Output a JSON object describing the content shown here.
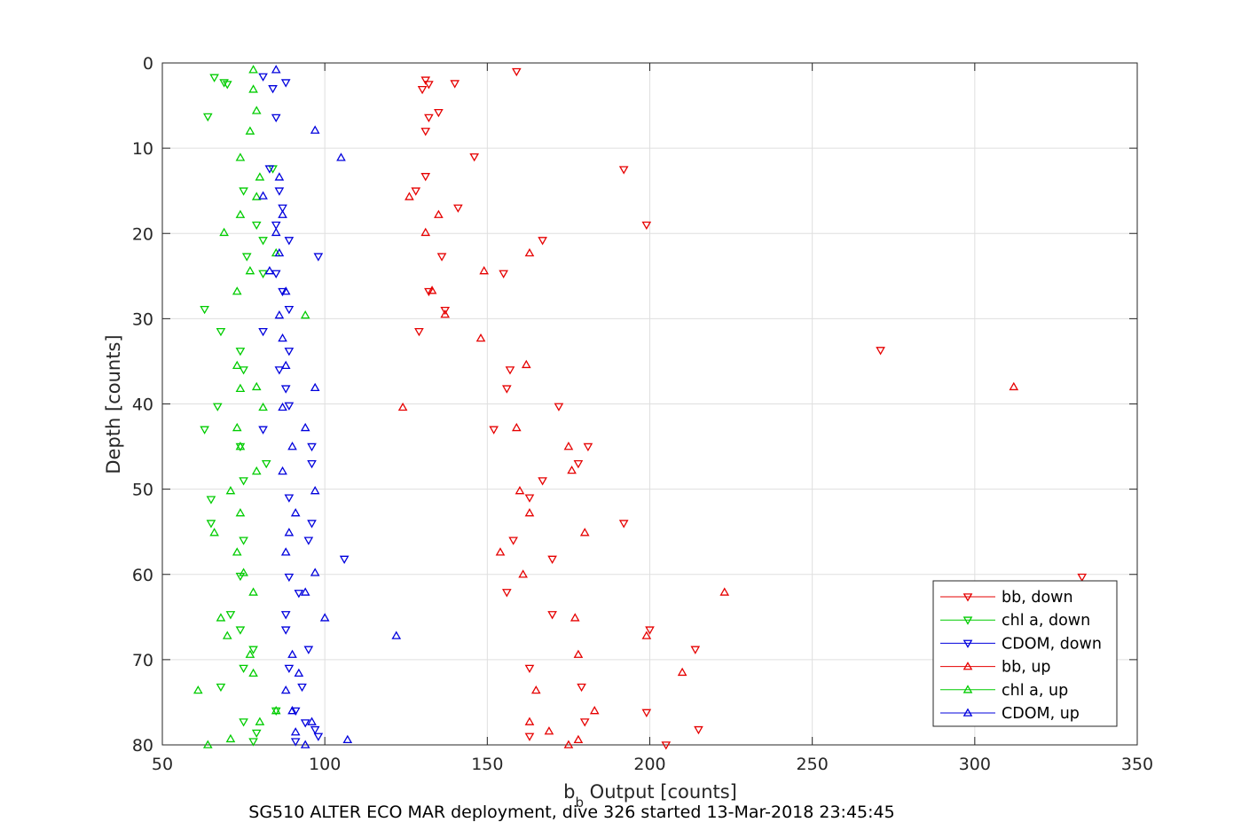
{
  "chart_data": {
    "type": "scatter",
    "xlabel_main": "b",
    "xlabel_sub": "b",
    "xlabel_rest": " Output [counts]",
    "ylabel": "Depth [counts]",
    "xlim": [
      50,
      350
    ],
    "ylim": [
      0,
      80
    ],
    "y_reversed": true,
    "x_ticks": [
      50,
      100,
      150,
      200,
      250,
      300,
      350
    ],
    "y_ticks": [
      0,
      10,
      20,
      30,
      40,
      50,
      60,
      70,
      80
    ],
    "grid": true,
    "legend_position": "bottom-right",
    "caption": "SG510 ALTER ECO MAR deployment, dive 326 started 13-Mar-2018 23:45:45",
    "series": [
      {
        "name": "bb, down",
        "color": "#e60000",
        "marker": "down",
        "points": [
          [
            159,
            1
          ],
          [
            131,
            2
          ],
          [
            132,
            2.5
          ],
          [
            140,
            2.4
          ],
          [
            130,
            3.1
          ],
          [
            135,
            5.8
          ],
          [
            132,
            6.4
          ],
          [
            131,
            8
          ],
          [
            146,
            11
          ],
          [
            192,
            12.5
          ],
          [
            131,
            13.3
          ],
          [
            128,
            15
          ],
          [
            141,
            17
          ],
          [
            199,
            19
          ],
          [
            167,
            20.8
          ],
          [
            136,
            22.7
          ],
          [
            155,
            24.7
          ],
          [
            132,
            26.8
          ],
          [
            137,
            29
          ],
          [
            129,
            31.5
          ],
          [
            271,
            33.7
          ],
          [
            157,
            36
          ],
          [
            156,
            38.2
          ],
          [
            172,
            40.3
          ],
          [
            152,
            43
          ],
          [
            181,
            45
          ],
          [
            178,
            47
          ],
          [
            167,
            49
          ],
          [
            163,
            51
          ],
          [
            192,
            54
          ],
          [
            158,
            56
          ],
          [
            170,
            58.2
          ],
          [
            333,
            60.3
          ],
          [
            156,
            62.1
          ],
          [
            170,
            64.7
          ],
          [
            200,
            66.5
          ],
          [
            214,
            68.8
          ],
          [
            163,
            71
          ],
          [
            179,
            73.2
          ],
          [
            199,
            76.2
          ],
          [
            180,
            77.3
          ],
          [
            215,
            78.2
          ],
          [
            163,
            79
          ],
          [
            205,
            80
          ]
        ]
      },
      {
        "name": "chl a, down",
        "color": "#00cc00",
        "marker": "down",
        "points": [
          [
            66,
            1.7
          ],
          [
            69,
            2.3
          ],
          [
            70,
            2.5
          ],
          [
            64,
            6.3
          ],
          [
            84,
            12.4
          ],
          [
            75,
            15
          ],
          [
            79,
            19
          ],
          [
            81,
            20.8
          ],
          [
            76,
            22.7
          ],
          [
            81,
            24.7
          ],
          [
            63,
            28.9
          ],
          [
            68,
            31.5
          ],
          [
            74,
            33.8
          ],
          [
            75,
            36
          ],
          [
            67,
            40.3
          ],
          [
            63,
            43
          ],
          [
            74,
            45
          ],
          [
            82,
            47
          ],
          [
            75,
            49
          ],
          [
            65,
            51.2
          ],
          [
            65,
            54
          ],
          [
            75,
            56
          ],
          [
            74,
            60.2
          ],
          [
            71,
            64.7
          ],
          [
            74,
            66.5
          ],
          [
            78,
            68.8
          ],
          [
            75,
            71
          ],
          [
            68,
            73.2
          ],
          [
            85,
            76
          ],
          [
            75,
            77.3
          ],
          [
            79,
            78.6
          ],
          [
            78,
            79.6
          ]
        ]
      },
      {
        "name": "CDOM, down",
        "color": "#0000dd",
        "marker": "down",
        "points": [
          [
            81,
            1.6
          ],
          [
            88,
            2.3
          ],
          [
            84,
            3
          ],
          [
            85,
            6.4
          ],
          [
            83,
            12.4
          ],
          [
            86,
            15
          ],
          [
            87,
            17
          ],
          [
            85,
            19
          ],
          [
            89,
            20.8
          ],
          [
            98,
            22.7
          ],
          [
            85,
            24.7
          ],
          [
            87,
            26.8
          ],
          [
            89,
            28.9
          ],
          [
            81,
            31.5
          ],
          [
            89,
            33.8
          ],
          [
            86,
            36
          ],
          [
            88,
            38.2
          ],
          [
            89,
            40.2
          ],
          [
            81,
            43
          ],
          [
            96,
            45
          ],
          [
            96,
            47
          ],
          [
            89,
            51
          ],
          [
            96,
            54
          ],
          [
            95,
            56
          ],
          [
            106,
            58.2
          ],
          [
            89,
            60.3
          ],
          [
            92,
            62.2
          ],
          [
            88,
            64.7
          ],
          [
            88,
            66.5
          ],
          [
            95,
            68.8
          ],
          [
            89,
            71
          ],
          [
            93,
            73.2
          ],
          [
            91,
            76
          ],
          [
            94,
            77.4
          ],
          [
            97,
            78.2
          ],
          [
            98,
            79
          ],
          [
            91,
            79.6
          ]
        ]
      },
      {
        "name": "bb, up",
        "color": "#e60000",
        "marker": "up",
        "points": [
          [
            126,
            15.7
          ],
          [
            135,
            17.8
          ],
          [
            131,
            19.9
          ],
          [
            163,
            22.3
          ],
          [
            149,
            24.4
          ],
          [
            133,
            26.7
          ],
          [
            137,
            29.5
          ],
          [
            148,
            32.3
          ],
          [
            162,
            35.4
          ],
          [
            312,
            38
          ],
          [
            124,
            40.4
          ],
          [
            159,
            42.8
          ],
          [
            175,
            45
          ],
          [
            176,
            47.8
          ],
          [
            160,
            50.2
          ],
          [
            163,
            52.8
          ],
          [
            180,
            55.1
          ],
          [
            154,
            57.4
          ],
          [
            161,
            60
          ],
          [
            223,
            62.1
          ],
          [
            177,
            65.1
          ],
          [
            199,
            67.2
          ],
          [
            178,
            69.4
          ],
          [
            210,
            71.5
          ],
          [
            165,
            73.6
          ],
          [
            183,
            76
          ],
          [
            163,
            77.3
          ],
          [
            169,
            78.4
          ],
          [
            178,
            79.4
          ],
          [
            175,
            80
          ]
        ]
      },
      {
        "name": "chl a, up",
        "color": "#00cc00",
        "marker": "up",
        "points": [
          [
            78,
            0.8
          ],
          [
            78,
            3.1
          ],
          [
            79,
            5.6
          ],
          [
            77,
            8
          ],
          [
            74,
            11.1
          ],
          [
            80,
            13.4
          ],
          [
            79,
            15.7
          ],
          [
            74,
            17.8
          ],
          [
            69,
            19.9
          ],
          [
            85,
            22.3
          ],
          [
            77,
            24.4
          ],
          [
            73,
            26.8
          ],
          [
            94,
            29.6
          ],
          [
            73,
            35.5
          ],
          [
            74,
            38.2
          ],
          [
            79,
            38
          ],
          [
            81,
            40.4
          ],
          [
            73,
            42.8
          ],
          [
            74,
            45
          ],
          [
            79,
            47.9
          ],
          [
            71,
            50.2
          ],
          [
            74,
            52.8
          ],
          [
            66,
            55.1
          ],
          [
            73,
            57.4
          ],
          [
            75,
            59.8
          ],
          [
            78,
            62.1
          ],
          [
            68,
            65.1
          ],
          [
            70,
            67.2
          ],
          [
            77,
            69.4
          ],
          [
            78,
            71.6
          ],
          [
            61,
            73.6
          ],
          [
            85,
            76
          ],
          [
            80,
            77.3
          ],
          [
            71,
            79.3
          ],
          [
            64,
            80
          ]
        ]
      },
      {
        "name": "CDOM, up",
        "color": "#0000dd",
        "marker": "up",
        "points": [
          [
            85,
            0.8
          ],
          [
            97,
            7.9
          ],
          [
            105,
            11.1
          ],
          [
            86,
            13.4
          ],
          [
            81,
            15.6
          ],
          [
            87,
            17.8
          ],
          [
            85,
            19.9
          ],
          [
            86,
            22.3
          ],
          [
            83,
            24.4
          ],
          [
            88,
            26.8
          ],
          [
            86,
            29.6
          ],
          [
            87,
            32.3
          ],
          [
            88,
            35.5
          ],
          [
            97,
            38.1
          ],
          [
            87,
            40.4
          ],
          [
            94,
            42.8
          ],
          [
            90,
            45
          ],
          [
            87,
            47.9
          ],
          [
            97,
            50.2
          ],
          [
            91,
            52.8
          ],
          [
            89,
            55.1
          ],
          [
            88,
            57.4
          ],
          [
            97,
            59.8
          ],
          [
            94,
            62.1
          ],
          [
            100,
            65.1
          ],
          [
            122,
            67.2
          ],
          [
            90,
            69.4
          ],
          [
            92,
            71.6
          ],
          [
            88,
            73.6
          ],
          [
            90,
            76
          ],
          [
            96,
            77.3
          ],
          [
            91,
            78.5
          ],
          [
            107,
            79.4
          ],
          [
            94,
            80
          ]
        ]
      }
    ]
  }
}
